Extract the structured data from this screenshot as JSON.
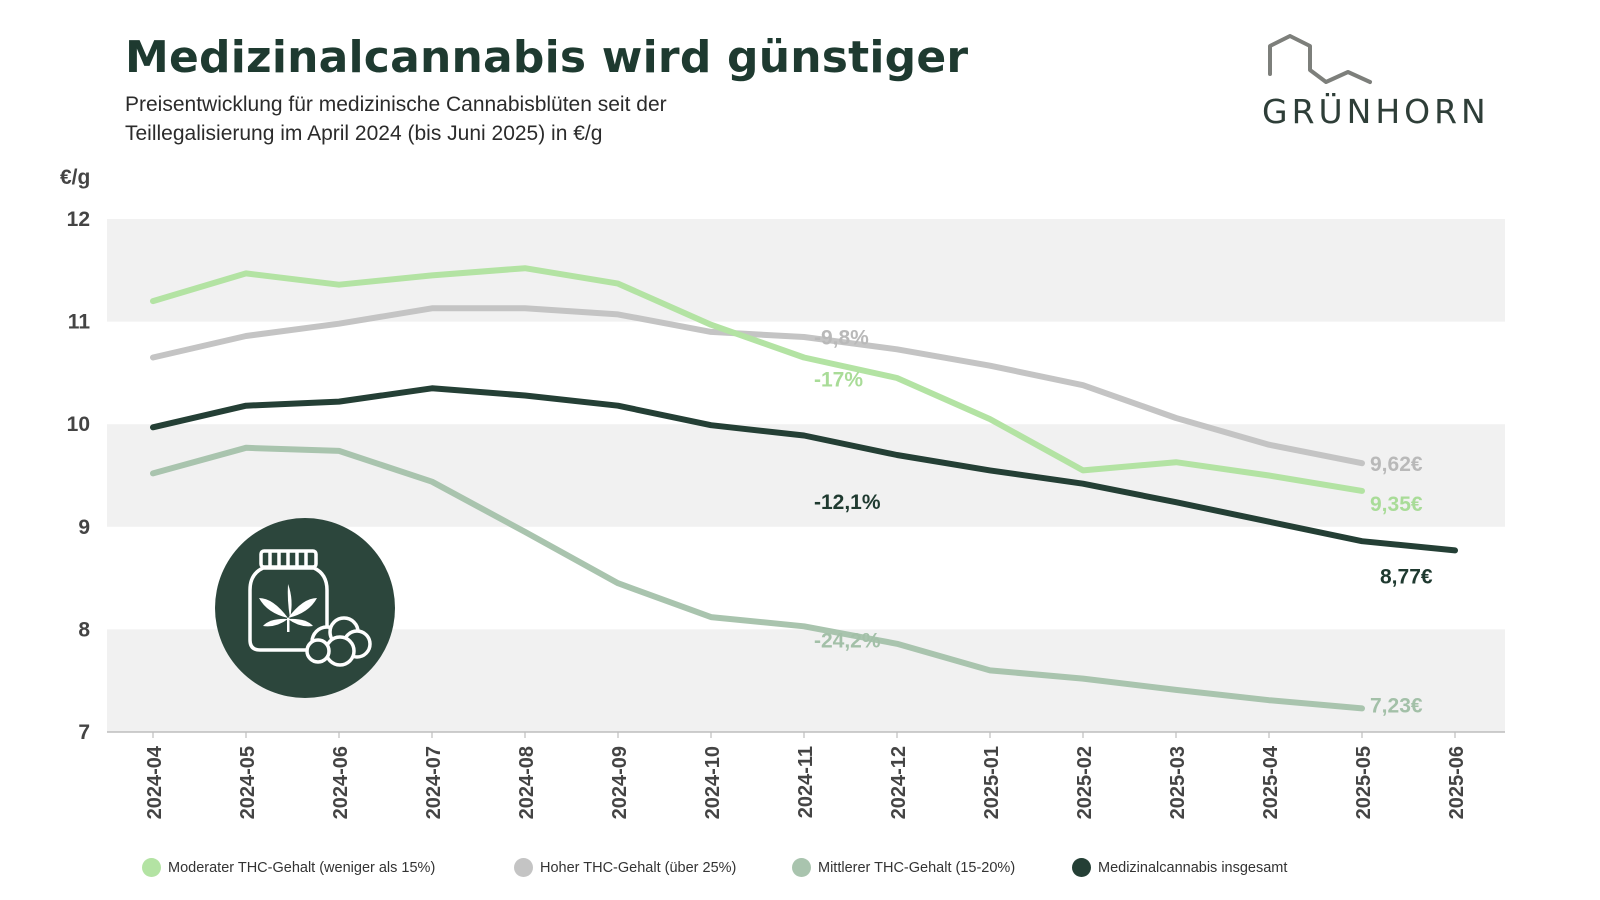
{
  "header": {
    "title": "Medizinalcannabis wird günstiger",
    "subtitle_line1": "Preisentwicklung für medizinische Cannabisblüten seit der",
    "subtitle_line2": "Teillegalisierung im April 2024 (bis Juni 2025) in €/g",
    "logo_text": "GRÜNHORN"
  },
  "colors": {
    "light_green": "#b3e3a3",
    "grey": "#c4c4c4",
    "sage": "#a9c4ae",
    "dark": "#243f35",
    "band": "#f1f1f1"
  },
  "icons": {
    "badge": "medicine-jar-cannabis-icon",
    "logo": "house-roof-logo-icon"
  },
  "chart_data": {
    "type": "line",
    "title": "Medizinalcannabis wird günstiger",
    "ylabel": "€/g",
    "xlabel": "",
    "ylim": [
      7,
      12
    ],
    "yticks": [
      7,
      8,
      9,
      10,
      11,
      12
    ],
    "grid": "alternating horizontal bands",
    "legend_position": "bottom",
    "categories": [
      "2024-04",
      "2024-05",
      "2024-06",
      "2024-07",
      "2024-08",
      "2024-09",
      "2024-10",
      "2024-11",
      "2024-12",
      "2025-01",
      "2025-02",
      "2025-03",
      "2025-04",
      "2025-05",
      "2025-06"
    ],
    "series": [
      {
        "name": "Moderater THC-Gehalt (weniger als 15%)",
        "color": "#b3e3a3",
        "values": [
          11.2,
          11.47,
          11.36,
          11.45,
          11.52,
          11.37,
          10.97,
          10.65,
          10.45,
          10.05,
          9.55,
          9.63,
          9.5,
          9.35,
          null
        ],
        "change_label": "-17%",
        "change_at": "2024-11",
        "end_label": "9,35€"
      },
      {
        "name": "Hoher THC-Gehalt (über 25%)",
        "color": "#c4c4c4",
        "values": [
          10.65,
          10.86,
          10.98,
          11.13,
          11.13,
          11.07,
          10.9,
          10.85,
          10.73,
          10.57,
          10.38,
          10.06,
          9.8,
          9.62,
          null
        ],
        "change_label": "-9,8%",
        "change_at": "2024-11",
        "end_label": "9,62€"
      },
      {
        "name": "Mittlerer THC-Gehalt (15-20%)",
        "color": "#a9c4ae",
        "values": [
          9.52,
          9.77,
          9.74,
          9.44,
          8.95,
          8.45,
          8.12,
          8.03,
          7.86,
          7.6,
          7.52,
          7.41,
          7.31,
          7.23,
          null
        ],
        "change_label": "-24,2%",
        "change_at": "2024-11",
        "end_label": "7,23€"
      },
      {
        "name": "Medizinalcannabis insgesamt",
        "color": "#243f35",
        "values": [
          9.97,
          10.18,
          10.22,
          10.35,
          10.28,
          10.18,
          9.99,
          9.89,
          9.7,
          9.55,
          9.42,
          9.24,
          9.05,
          8.86,
          8.77
        ],
        "change_label": "-12,1%",
        "change_at": "2024-11",
        "end_label": "8,77€"
      }
    ]
  }
}
